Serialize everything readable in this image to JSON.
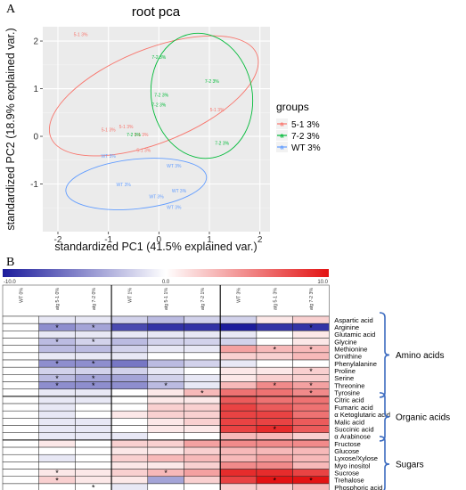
{
  "panels": {
    "a": "A",
    "b": "B"
  },
  "chart_data": [
    {
      "type": "scatter",
      "title": "root pca",
      "xlabel": "standardized PC1 (41.5% explained var.)",
      "ylabel": "standardized PC2 (18.9% explained var.)",
      "xlim": [
        -2.3,
        2.2
      ],
      "ylim": [
        -2.0,
        2.3
      ],
      "xticks": [
        -2,
        -1,
        0,
        1,
        2
      ],
      "yticks": [
        -1,
        0,
        1,
        2
      ],
      "grid": true,
      "legend": {
        "title": "groups",
        "position": "right"
      },
      "series": [
        {
          "name": "5-1 3%",
          "color": "#F8766D",
          "points": [
            {
              "x": -1.55,
              "y": 2.1,
              "label": "5-1 3%"
            },
            {
              "x": -0.65,
              "y": 0.17,
              "label": "5-1 3%"
            },
            {
              "x": -0.35,
              "y": 0.0,
              "label": "5-1 3%"
            },
            {
              "x": -1.0,
              "y": 0.1,
              "label": "5-1 3%"
            },
            {
              "x": -0.3,
              "y": -0.33,
              "label": "5-1 3%"
            },
            {
              "x": 1.15,
              "y": 0.52,
              "label": "5-1 3%"
            }
          ],
          "ellipse": {
            "cx": -0.1,
            "cy": 0.85,
            "rx": 2.2,
            "ry": 0.98,
            "angle": -22
          }
        },
        {
          "name": "7-2 3%",
          "color": "#00BA38",
          "points": [
            {
              "x": 0.0,
              "y": 1.63,
              "label": "7-2 3%"
            },
            {
              "x": 1.05,
              "y": 1.12,
              "label": "7-2 3%"
            },
            {
              "x": 0.05,
              "y": 0.83,
              "label": "7-2 3%"
            },
            {
              "x": 0.0,
              "y": 0.63,
              "label": "7-2 3%"
            },
            {
              "x": 1.25,
              "y": -0.18,
              "label": "7-2 3%"
            },
            {
              "x": -0.5,
              "y": 0.0,
              "label": "7-2 3%"
            }
          ],
          "ellipse": {
            "cx": 0.85,
            "cy": 0.85,
            "rx": 1.0,
            "ry": 1.32,
            "angle": -10
          }
        },
        {
          "name": "WT 3%",
          "color": "#619CFF",
          "points": [
            {
              "x": -1.0,
              "y": -0.45,
              "label": "WT 3%"
            },
            {
              "x": 0.3,
              "y": -0.65,
              "label": "WT 3%"
            },
            {
              "x": -0.7,
              "y": -1.05,
              "label": "WT 3%"
            },
            {
              "x": -0.05,
              "y": -1.3,
              "label": "WT 3%"
            },
            {
              "x": 0.4,
              "y": -1.18,
              "label": "WT 3%"
            },
            {
              "x": 0.3,
              "y": -1.52,
              "label": "WT 3%"
            }
          ],
          "ellipse": {
            "cx": -0.45,
            "cy": -1.0,
            "rx": 1.4,
            "ry": 0.52,
            "angle": -6
          }
        }
      ]
    },
    {
      "type": "heatmap",
      "scale": {
        "min": -10.0,
        "mid": 0.0,
        "max": 10.0,
        "min_label": "-10.0",
        "mid_label": "0.0",
        "max_label": "10.0",
        "low_color": "#1c1c9c",
        "mid_color": "#ffffff",
        "high_color": "#e31414"
      },
      "columns": [
        "WT 0%",
        "atg 5-1 0%",
        "atg 7-2 0%",
        "WT 1%",
        "atg 5-1 1%",
        "atg 7-2 1%",
        "WT 3%",
        "atg 5-1 3%",
        "atg 7-2 3%"
      ],
      "rows": [
        "Aspartic acid",
        "Arginine",
        "Glutamic acid",
        "Glycine",
        "Methionine",
        "Ornithine",
        "Phenylalanine",
        "Proline",
        "Serine",
        "Threonine",
        "Tyrosine",
        "Citric acid",
        "Fumaric acid",
        "α Ketoglutaric acid",
        "Malic acid",
        "Succinic acid",
        "α Arabinose",
        "Fructose",
        "Glucose",
        "Lyxose/Xylose",
        "Myo inositol",
        "Sucrose",
        "Trehalose",
        "Phosphoric acid"
      ],
      "values": [
        [
          0,
          -1,
          -1,
          -2,
          -3,
          -2,
          -2,
          1,
          2
        ],
        [
          0,
          -5,
          -4,
          -8,
          -9,
          -9,
          -10,
          -9,
          -9
        ],
        [
          0,
          -1,
          -1,
          -1,
          -1,
          -1,
          -1,
          0,
          1
        ],
        [
          0,
          -3,
          -2,
          -3,
          -2,
          -2,
          -2,
          0,
          1
        ],
        [
          0,
          -3,
          -3,
          -2,
          -1,
          -1,
          4,
          3,
          3
        ],
        [
          0,
          -1,
          -1,
          -1,
          0,
          0,
          2,
          2,
          3
        ],
        [
          0,
          -5,
          -5,
          -6,
          -3,
          -2,
          -1,
          0,
          0
        ],
        [
          0,
          -2,
          -2,
          -2,
          -1,
          0,
          1,
          1,
          2
        ],
        [
          0,
          -3,
          -4,
          -4,
          -2,
          -1,
          1,
          2,
          2
        ],
        [
          0,
          -5,
          -5,
          -5,
          -3,
          -1,
          3,
          5,
          4
        ],
        [
          0,
          -1,
          -1,
          0,
          1,
          3,
          6,
          6,
          5
        ],
        [
          0,
          -1,
          -1,
          0,
          1,
          1,
          7,
          6,
          6
        ],
        [
          0,
          -1,
          0,
          0,
          2,
          2,
          8,
          7,
          6
        ],
        [
          0,
          -1,
          0,
          1,
          2,
          2,
          8,
          8,
          6
        ],
        [
          0,
          -1,
          -1,
          0,
          1,
          2,
          8,
          8,
          7
        ],
        [
          0,
          -1,
          -1,
          0,
          1,
          1,
          8,
          9,
          7
        ],
        [
          0,
          -1,
          -1,
          -1,
          0,
          0,
          3,
          3,
          2
        ],
        [
          0,
          1,
          0,
          2,
          2,
          4,
          5,
          5,
          5
        ],
        [
          0,
          0,
          0,
          1,
          1,
          2,
          3,
          3,
          3
        ],
        [
          0,
          -1,
          0,
          2,
          3,
          3,
          3,
          4,
          3
        ],
        [
          0,
          0,
          0,
          1,
          1,
          2,
          5,
          5,
          3
        ],
        [
          0,
          1,
          1,
          2,
          3,
          4,
          9,
          9,
          8
        ],
        [
          0,
          2,
          1,
          1,
          -4,
          2,
          8,
          10,
          10
        ],
        [
          0,
          0,
          0,
          -1,
          0,
          0,
          2,
          2,
          3
        ]
      ],
      "significant": [
        [
          1,
          1
        ],
        [
          1,
          2
        ],
        [
          1,
          8
        ],
        [
          3,
          1
        ],
        [
          3,
          2
        ],
        [
          4,
          7
        ],
        [
          4,
          8
        ],
        [
          6,
          1
        ],
        [
          6,
          2
        ],
        [
          7,
          8
        ],
        [
          8,
          1
        ],
        [
          8,
          2
        ],
        [
          9,
          1
        ],
        [
          9,
          2
        ],
        [
          9,
          4
        ],
        [
          9,
          7
        ],
        [
          9,
          8
        ],
        [
          10,
          5
        ],
        [
          10,
          8
        ],
        [
          15,
          7
        ],
        [
          21,
          1
        ],
        [
          21,
          4
        ],
        [
          22,
          1
        ],
        [
          22,
          7
        ],
        [
          22,
          8
        ],
        [
          23,
          2
        ]
      ],
      "star_symbol": "*",
      "groups": [
        {
          "label": "Amino acids",
          "first_row": 0,
          "last_row": 10
        },
        {
          "label": "Organic acids",
          "first_row": 11,
          "last_row": 16
        },
        {
          "label": "Sugars",
          "first_row": 17,
          "last_row": 23
        }
      ]
    }
  ]
}
